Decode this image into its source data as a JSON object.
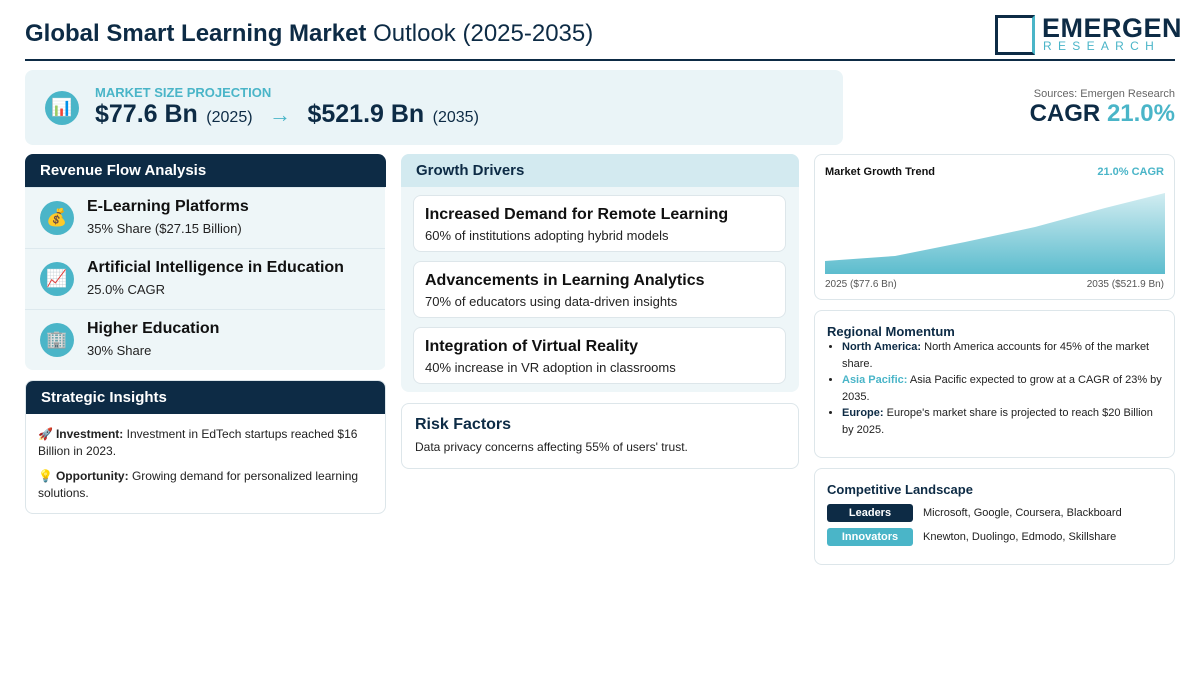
{
  "header": {
    "title_bold": "Global Smart Learning Market",
    "title_rest": "Outlook (2025-2035)",
    "logo_main": "EMERGEN",
    "logo_sub": "RESEARCH"
  },
  "projection": {
    "icon": "📊",
    "label": "MARKET SIZE PROJECTION",
    "start_value": "$77.6 Bn",
    "start_year": "(2025)",
    "arrow": "→",
    "end_value": "$521.9 Bn",
    "end_year": "(2035)"
  },
  "sources": {
    "text": "Sources: Emergen Research",
    "cagr_label": "CAGR",
    "cagr_value": "21.0%"
  },
  "revenue": {
    "title": "Revenue Flow Analysis",
    "items": [
      {
        "icon": "💰",
        "name": "E-Learning Platforms",
        "detail": "35% Share ($27.15 Billion)"
      },
      {
        "icon": "📈",
        "name": "Artificial Intelligence in Education",
        "detail": "25.0% CAGR"
      },
      {
        "icon": "🏢",
        "name": "Higher Education",
        "detail": "30% Share"
      }
    ]
  },
  "insights": {
    "title": "Strategic Insights",
    "items": [
      {
        "icon": "🚀",
        "label": "Investment:",
        "text": "Investment in EdTech startups reached $16 Billion in 2023."
      },
      {
        "icon": "💡",
        "label": "Opportunity:",
        "text": "Growing demand for personalized learning solutions."
      }
    ]
  },
  "drivers": {
    "title": "Growth Drivers",
    "items": [
      {
        "title": "Increased Demand for Remote Learning",
        "detail": "60% of institutions adopting hybrid models"
      },
      {
        "title": "Advancements in Learning Analytics",
        "detail": "70% of educators using data-driven insights"
      },
      {
        "title": "Integration of Virtual Reality",
        "detail": "40% increase in VR adoption in classrooms"
      }
    ]
  },
  "risk": {
    "title": "Risk Factors",
    "text": "Data privacy concerns affecting 55% of users' trust."
  },
  "trend": {
    "title": "Market Growth Trend",
    "badge": "21.0% CAGR",
    "start_label": "2025 ($77.6 Bn)",
    "end_label": "2035 ($521.9 Bn)"
  },
  "regional": {
    "title": "Regional Momentum",
    "items": [
      {
        "region": "North America:",
        "text": "North America accounts for 45% of the market share."
      },
      {
        "region": "Asia Pacific:",
        "text": "Asia Pacific expected to grow at a CAGR of 23% by 2035."
      },
      {
        "region": "Europe:",
        "text": "Europe's market share is projected to reach $20 Billion by 2025."
      }
    ]
  },
  "competitive": {
    "title": "Competitive Landscape",
    "rows": [
      {
        "tag": "Leaders",
        "names": "Microsoft, Google, Coursera, Blackboard"
      },
      {
        "tag": "Innovators",
        "names": "Knewton, Duolingo, Edmodo, Skillshare"
      }
    ]
  }
}
